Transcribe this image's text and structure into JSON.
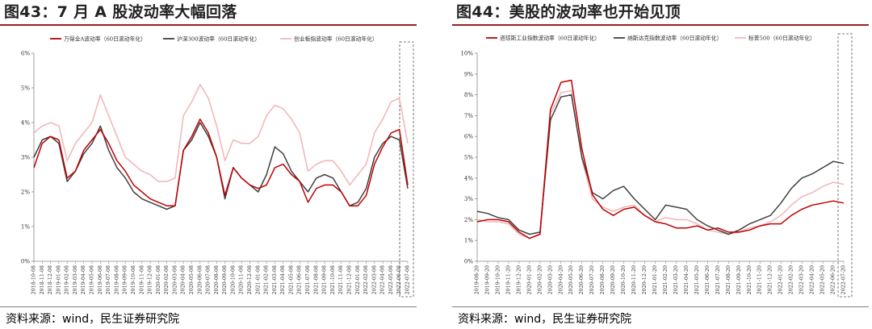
{
  "left": {
    "title": "图43：7 月 A 股波动率大幅回落",
    "source": "资料来源：wind，民生证券研究院"
  },
  "right": {
    "title": "图44：美股的波动率也开始见顶",
    "source": "资料来源：wind，民生证券研究院"
  },
  "colors": {
    "title_rule": "#9c1c20",
    "series_red": "#c00000",
    "series_dark": "#404040",
    "series_pink": "#f2b8bb"
  },
  "chart_data": [
    {
      "type": "line",
      "title": "",
      "xlabel": "",
      "ylabel": "",
      "ylim": [
        0,
        6
      ],
      "yticks": [
        "0%",
        "1%",
        "2%",
        "3%",
        "4%",
        "5%",
        "6%"
      ],
      "grid": false,
      "legend_position": "top",
      "highlight_box": true,
      "x_ticks": [
        "2018-10-08",
        "2018-11-08",
        "2018-12-08",
        "2019-01-08",
        "2019-02-08",
        "2019-03-08",
        "2019-04-08",
        "2019-05-08",
        "2019-06-08",
        "2019-07-08",
        "2019-08-08",
        "2019-09-08",
        "2019-10-08",
        "2019-11-08",
        "2019-12-08",
        "2020-01-08",
        "2020-02-08",
        "2020-03-08",
        "2020-04-08",
        "2020-05-08",
        "2020-06-08",
        "2020-07-08",
        "2020-08-08",
        "2020-09-08",
        "2020-10-08",
        "2020-11-08",
        "2020-12-08",
        "2021-01-08",
        "2021-02-08",
        "2021-03-08",
        "2021-04-08",
        "2021-05-08",
        "2021-06-08",
        "2021-07-08",
        "2021-08-08",
        "2021-09-08",
        "2021-10-08",
        "2021-11-08",
        "2021-12-08",
        "2022-01-08",
        "2022-02-08",
        "2022-03-08",
        "2022-04-08",
        "2022-05-08",
        "2022-06-08",
        "2022-07-08"
      ],
      "series": [
        {
          "name": "万得全A波动率（60日滚动年化）",
          "color": "#c00000",
          "values": [
            2.7,
            3.4,
            3.6,
            3.5,
            2.4,
            2.6,
            3.2,
            3.5,
            3.8,
            3.4,
            2.9,
            2.6,
            2.2,
            2.0,
            1.8,
            1.7,
            1.6,
            1.6,
            3.2,
            3.6,
            4.1,
            3.7,
            3.0,
            1.9,
            2.7,
            2.4,
            2.2,
            2.1,
            2.2,
            2.7,
            2.8,
            2.5,
            2.3,
            1.7,
            2.1,
            2.2,
            2.2,
            2.0,
            1.6,
            1.6,
            1.9,
            2.8,
            3.3,
            3.7,
            3.8,
            2.2
          ]
        },
        {
          "name": "沪深300波动率（60日滚动年化）",
          "color": "#404040",
          "values": [
            3.0,
            3.5,
            3.6,
            3.4,
            2.3,
            2.6,
            3.1,
            3.4,
            3.9,
            3.2,
            2.7,
            2.4,
            2.0,
            1.8,
            1.7,
            1.6,
            1.5,
            1.6,
            3.2,
            3.5,
            4.0,
            3.6,
            3.0,
            1.8,
            2.7,
            2.4,
            2.2,
            2.0,
            2.5,
            3.3,
            3.1,
            2.6,
            2.3,
            2.0,
            2.4,
            2.5,
            2.4,
            2.0,
            1.6,
            1.7,
            2.1,
            3.0,
            3.4,
            3.6,
            3.5,
            2.1
          ]
        },
        {
          "name": "创业板指波动率（60日滚动年化）",
          "color": "#f2b8bb",
          "values": [
            3.7,
            3.9,
            4.0,
            3.9,
            2.9,
            3.4,
            3.7,
            4.0,
            4.8,
            4.2,
            3.6,
            3.0,
            2.8,
            2.6,
            2.5,
            2.3,
            2.3,
            2.4,
            4.2,
            4.6,
            5.1,
            4.7,
            3.9,
            2.9,
            3.5,
            3.4,
            3.4,
            3.6,
            4.2,
            4.5,
            4.4,
            4.1,
            3.7,
            2.6,
            2.8,
            2.9,
            2.9,
            2.6,
            2.2,
            2.5,
            2.8,
            3.7,
            4.1,
            4.6,
            4.7,
            3.4
          ]
        }
      ]
    },
    {
      "type": "line",
      "title": "",
      "xlabel": "",
      "ylabel": "",
      "ylim": [
        0,
        10
      ],
      "yticks": [
        "0%",
        "1%",
        "2%",
        "3%",
        "4%",
        "5%",
        "6%",
        "7%",
        "8%",
        "9%",
        "10%"
      ],
      "grid": false,
      "legend_position": "top",
      "highlight_box": true,
      "x_ticks": [
        "2019-08-20",
        "2019-09-20",
        "2019-10-20",
        "2019-11-20",
        "2019-12-20",
        "2020-01-20",
        "2020-02-20",
        "2020-03-20",
        "2020-04-20",
        "2020-05-20",
        "2020-06-20",
        "2020-07-20",
        "2020-08-20",
        "2020-09-20",
        "2020-10-20",
        "2020-11-20",
        "2020-12-20",
        "2021-01-20",
        "2021-02-20",
        "2021-03-20",
        "2021-04-20",
        "2021-05-20",
        "2021-06-20",
        "2021-07-20",
        "2021-08-20",
        "2021-09-20",
        "2021-10-20",
        "2021-11-20",
        "2021-12-20",
        "2022-01-20",
        "2022-02-20",
        "2022-03-20",
        "2022-04-20",
        "2022-05-20",
        "2022-06-20",
        "2022-07-20"
      ],
      "series": [
        {
          "name": "道琼斯工业指数波动率（60日滚动年化）",
          "color": "#c00000",
          "values": [
            1.9,
            2.0,
            2.0,
            1.9,
            1.4,
            1.1,
            1.3,
            7.3,
            8.6,
            8.7,
            5.4,
            3.2,
            2.5,
            2.2,
            2.5,
            2.6,
            2.2,
            1.9,
            1.8,
            1.6,
            1.6,
            1.7,
            1.5,
            1.6,
            1.4,
            1.4,
            1.5,
            1.7,
            1.8,
            1.8,
            2.2,
            2.5,
            2.7,
            2.8,
            2.9,
            2.8
          ]
        },
        {
          "name": "纳斯达克指数波动率（60日滚动年化）",
          "color": "#404040",
          "values": [
            2.4,
            2.3,
            2.1,
            2.0,
            1.5,
            1.3,
            1.4,
            6.8,
            7.9,
            8.0,
            5.0,
            3.3,
            3.0,
            3.4,
            3.6,
            3.0,
            2.5,
            2.0,
            2.7,
            2.6,
            2.5,
            2.0,
            1.7,
            1.5,
            1.3,
            1.5,
            1.8,
            2.0,
            2.2,
            2.8,
            3.5,
            4.0,
            4.2,
            4.5,
            4.8,
            4.7
          ]
        },
        {
          "name": "标普500（60日滚动年化）",
          "color": "#f2b8bb",
          "values": [
            2.0,
            1.9,
            1.9,
            1.8,
            1.3,
            1.1,
            1.3,
            7.1,
            8.1,
            8.2,
            4.9,
            3.0,
            2.6,
            2.4,
            2.6,
            2.7,
            2.2,
            1.9,
            2.1,
            2.0,
            2.0,
            1.8,
            1.5,
            1.4,
            1.3,
            1.4,
            1.6,
            1.7,
            1.9,
            2.2,
            2.7,
            3.1,
            3.3,
            3.6,
            3.8,
            3.7
          ]
        }
      ]
    }
  ]
}
